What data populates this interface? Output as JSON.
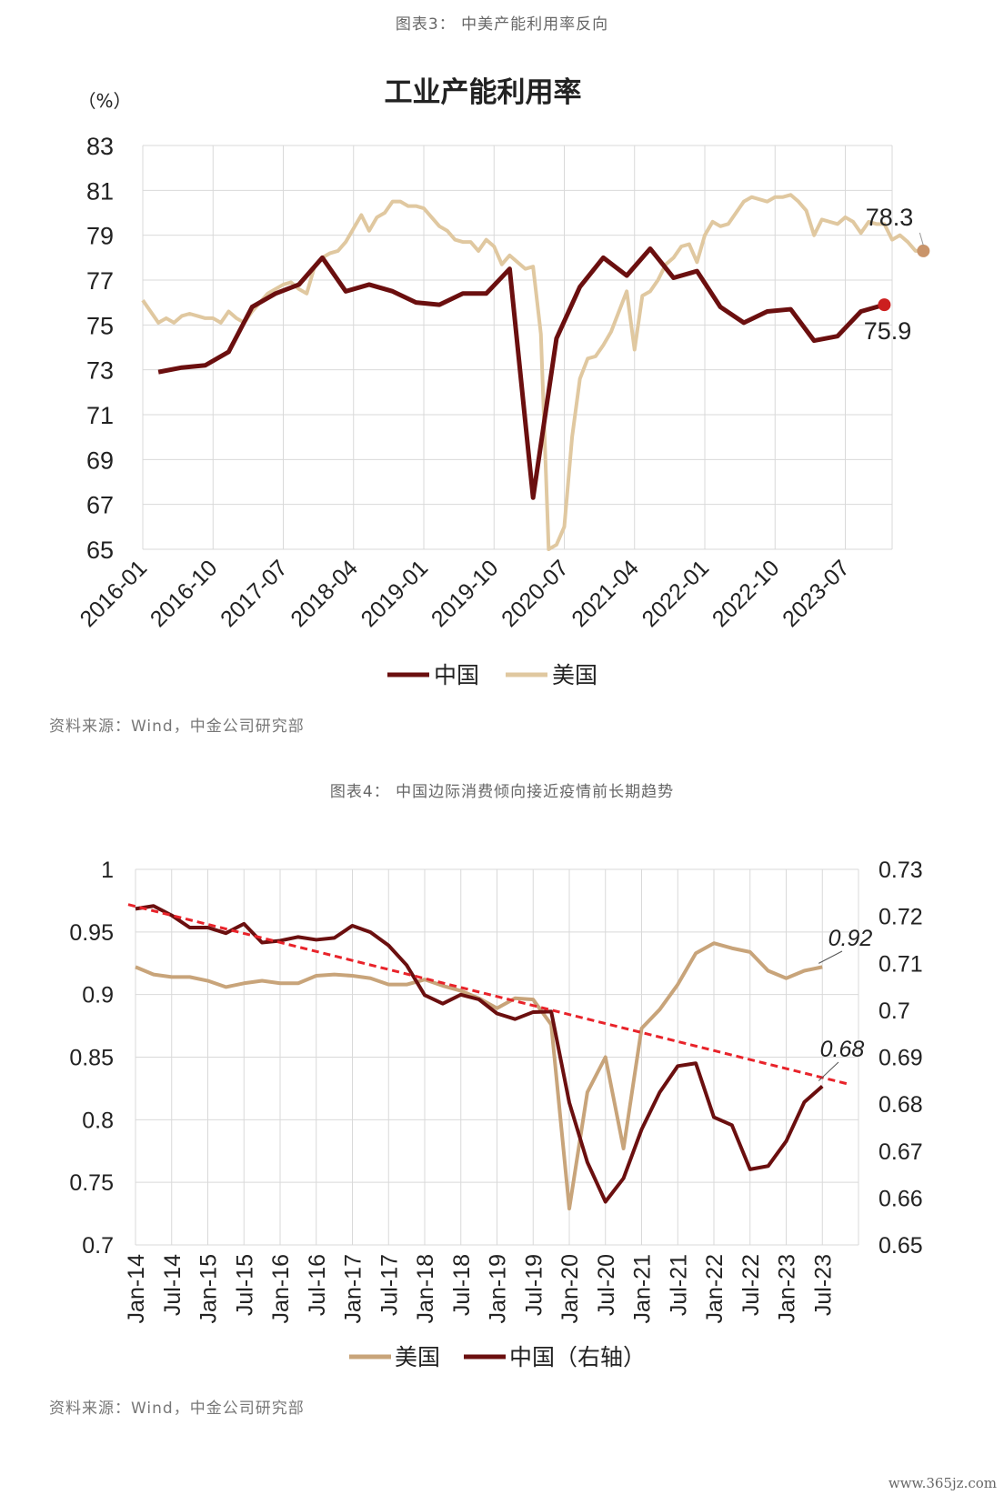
{
  "figure3": {
    "caption": "图表3： 中美产能利用率反向",
    "source": "资料来源：Wind，中金公司研究部"
  },
  "figure4": {
    "caption": "图表4： 中国边际消费倾向接近疫情前长期趋势",
    "source": "资料来源：Wind，中金公司研究部"
  },
  "watermark": "www.365jz.com",
  "chart_data": [
    {
      "type": "line",
      "title": "工业产能利用率",
      "ylabel": "（%）",
      "ylim": [
        65,
        83
      ],
      "yticks": [
        65,
        67,
        69,
        71,
        73,
        75,
        77,
        79,
        81,
        83
      ],
      "x_tick_labels": [
        "2016-01",
        "2016-10",
        "2017-07",
        "2018-04",
        "2019-01",
        "2019-10",
        "2020-07",
        "2021-04",
        "2022-01",
        "2022-10",
        "2023-07"
      ],
      "x_range_months": [
        "2016-01",
        "2024-01"
      ],
      "grid": true,
      "legend": "bottom",
      "colors": {
        "china": "#6b0f0f",
        "us": "#e0c8a0",
        "us_end_marker": "#c9946a",
        "china_end_marker": "#cc1f1f"
      },
      "series": [
        {
          "name": "中国",
          "frequency": "quarterly",
          "points": [
            [
              "2016-03",
              72.9
            ],
            [
              "2016-06",
              73.1
            ],
            [
              "2016-09",
              73.2
            ],
            [
              "2016-12",
              73.8
            ],
            [
              "2017-03",
              75.8
            ],
            [
              "2017-06",
              76.4
            ],
            [
              "2017-09",
              76.8
            ],
            [
              "2017-12",
              78.0
            ],
            [
              "2018-03",
              76.5
            ],
            [
              "2018-06",
              76.8
            ],
            [
              "2018-09",
              76.5
            ],
            [
              "2018-12",
              76.0
            ],
            [
              "2019-03",
              75.9
            ],
            [
              "2019-06",
              76.4
            ],
            [
              "2019-09",
              76.4
            ],
            [
              "2019-12",
              77.5
            ],
            [
              "2020-03",
              67.3
            ],
            [
              "2020-06",
              74.4
            ],
            [
              "2020-09",
              76.7
            ],
            [
              "2020-12",
              78.0
            ],
            [
              "2021-03",
              77.2
            ],
            [
              "2021-06",
              78.4
            ],
            [
              "2021-09",
              77.1
            ],
            [
              "2021-12",
              77.4
            ],
            [
              "2022-03",
              75.8
            ],
            [
              "2022-06",
              75.1
            ],
            [
              "2022-09",
              75.6
            ],
            [
              "2022-12",
              75.7
            ],
            [
              "2023-03",
              74.3
            ],
            [
              "2023-06",
              74.5
            ],
            [
              "2023-09",
              75.6
            ],
            [
              "2023-12",
              75.9
            ]
          ],
          "end_label": "75.9"
        },
        {
          "name": "美国",
          "frequency": "monthly",
          "start": "2016-01",
          "values": [
            76.1,
            75.6,
            75.1,
            75.3,
            75.1,
            75.4,
            75.5,
            75.4,
            75.3,
            75.3,
            75.1,
            75.6,
            75.3,
            75.1,
            75.6,
            76.0,
            76.4,
            76.6,
            76.8,
            76.9,
            76.6,
            76.4,
            77.6,
            78.0,
            78.2,
            78.3,
            78.7,
            79.3,
            79.9,
            79.2,
            79.8,
            80.0,
            80.5,
            80.5,
            80.3,
            80.3,
            80.2,
            79.8,
            79.4,
            79.2,
            78.8,
            78.7,
            78.7,
            78.3,
            78.8,
            78.5,
            77.7,
            78.1,
            77.8,
            77.5,
            77.6,
            74.6,
            65.0,
            65.2,
            66.0,
            70.0,
            72.6,
            73.5,
            73.6,
            74.1,
            74.7,
            75.6,
            76.5,
            73.9,
            76.3,
            76.5,
            77.0,
            77.7,
            78.0,
            78.5,
            78.6,
            77.8,
            79.0,
            79.6,
            79.4,
            79.5,
            80.0,
            80.5,
            80.7,
            80.6,
            80.5,
            80.7,
            80.7,
            80.8,
            80.5,
            80.1,
            79.0,
            79.7,
            79.6,
            79.5,
            79.8,
            79.6,
            79.1,
            79.6,
            79.5,
            79.5,
            78.8,
            79.0,
            78.7,
            78.3,
            78.3
          ],
          "end_label": "78.3"
        }
      ]
    },
    {
      "type": "line",
      "title": "",
      "ylim_left": [
        0.7,
        1.0
      ],
      "yticks_left": [
        0.7,
        0.75,
        0.8,
        0.85,
        0.9,
        0.95,
        1.0
      ],
      "ytick_labels_left": [
        "0.7",
        "0.75",
        "0.8",
        "0.85",
        "0.9",
        "0.95",
        "1"
      ],
      "ylim_right": [
        0.65,
        0.73
      ],
      "yticks_right": [
        0.65,
        0.66,
        0.67,
        0.68,
        0.69,
        0.7,
        0.71,
        0.72,
        0.73
      ],
      "ytick_labels_right": [
        "0.65",
        "0.66",
        "0.67",
        "0.68",
        "0.69",
        "0.7",
        "0.71",
        "0.72",
        "0.73"
      ],
      "x_tick_labels": [
        "Jan-14",
        "Jul-14",
        "Jan-15",
        "Jul-15",
        "Jan-16",
        "Jul-16",
        "Jan-17",
        "Jul-17",
        "Jan-18",
        "Jul-18",
        "Jan-19",
        "Jul-19",
        "Jan-20",
        "Jul-20",
        "Jan-21",
        "Jul-21",
        "Jan-22",
        "Jul-22",
        "Jan-23",
        "Jul-23"
      ],
      "grid": true,
      "legend": "bottom",
      "colors": {
        "us": "#c8a47a",
        "china": "#6b0f0f",
        "trend": "#e8232a"
      },
      "series": [
        {
          "name": "美国",
          "axis": "left",
          "quarter_index_start": 0,
          "values": [
            0.922,
            0.916,
            0.914,
            0.914,
            0.911,
            0.906,
            0.909,
            0.911,
            0.909,
            0.909,
            0.915,
            0.916,
            0.915,
            0.913,
            0.908,
            0.908,
            0.912,
            0.907,
            0.903,
            0.897,
            0.889,
            0.897,
            0.896,
            0.876,
            0.729,
            0.822,
            0.85,
            0.777,
            0.873,
            0.888,
            0.908,
            0.933,
            0.941,
            0.937,
            0.934,
            0.919,
            0.913,
            0.919,
            0.922
          ],
          "end_label": "0.92"
        },
        {
          "name": "中国（右轴）",
          "axis": "right",
          "quarter_index_start": 0,
          "values": [
            0.7216,
            0.7222,
            0.7202,
            0.7176,
            0.7176,
            0.7164,
            0.7184,
            0.7144,
            0.7148,
            0.7156,
            0.715,
            0.7154,
            0.718,
            0.7166,
            0.7138,
            0.7096,
            0.7032,
            0.7014,
            0.7033,
            0.7023,
            0.6993,
            0.6981,
            0.6996,
            0.6997,
            0.6803,
            0.6676,
            0.6592,
            0.6642,
            0.6746,
            0.6825,
            0.6881,
            0.6887,
            0.6772,
            0.6755,
            0.6661,
            0.6668,
            0.6721,
            0.6804,
            0.6838
          ],
          "end_label": "0.68"
        },
        {
          "name": "trend",
          "axis": "right",
          "style": "dashed",
          "endpoints": [
            [
              0,
              0.7225
            ],
            [
              39,
              0.6842
            ]
          ]
        }
      ]
    }
  ]
}
